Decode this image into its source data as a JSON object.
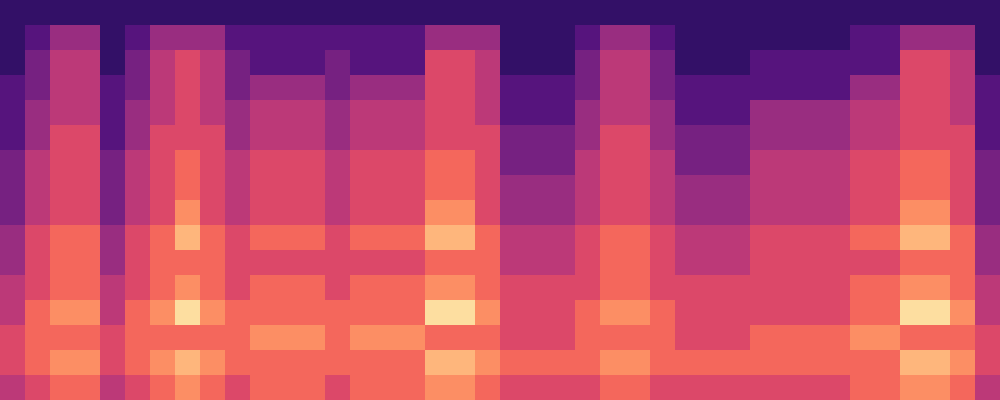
{
  "chart_data": {
    "type": "heatmap",
    "tick_labels": false,
    "cells": [
      [
        0,
        0,
        0,
        0,
        0,
        0,
        0,
        0,
        0,
        0,
        0,
        0,
        0,
        0,
        0,
        0,
        0,
        0,
        0,
        0,
        0,
        0,
        0,
        0,
        0,
        0,
        0,
        0,
        0,
        0,
        0,
        0,
        0,
        0,
        0,
        0,
        0,
        0,
        0,
        0
      ],
      [
        0,
        1,
        3,
        3,
        0,
        1,
        3,
        3,
        3,
        1,
        1,
        1,
        1,
        1,
        1,
        1,
        1,
        3,
        3,
        3,
        0,
        0,
        0,
        1,
        3,
        3,
        1,
        0,
        0,
        0,
        0,
        0,
        0,
        0,
        1,
        1,
        3,
        3,
        3,
        0
      ],
      [
        0,
        2,
        4,
        4,
        0,
        2,
        4,
        5,
        4,
        2,
        1,
        1,
        1,
        2,
        1,
        1,
        1,
        5,
        5,
        4,
        0,
        0,
        0,
        2,
        4,
        4,
        2,
        0,
        0,
        0,
        1,
        1,
        1,
        1,
        1,
        1,
        5,
        5,
        4,
        0
      ],
      [
        1,
        2,
        4,
        4,
        1,
        2,
        4,
        5,
        4,
        2,
        3,
        3,
        3,
        2,
        3,
        3,
        3,
        5,
        5,
        4,
        1,
        1,
        1,
        2,
        4,
        4,
        2,
        1,
        1,
        1,
        1,
        1,
        1,
        1,
        3,
        3,
        5,
        5,
        4,
        1
      ],
      [
        1,
        3,
        4,
        4,
        1,
        3,
        4,
        5,
        4,
        3,
        4,
        4,
        4,
        3,
        4,
        4,
        4,
        5,
        5,
        4,
        1,
        1,
        1,
        3,
        4,
        4,
        3,
        1,
        1,
        1,
        3,
        3,
        3,
        3,
        4,
        4,
        5,
        5,
        4,
        1
      ],
      [
        1,
        3,
        5,
        5,
        1,
        3,
        5,
        5,
        5,
        3,
        4,
        4,
        4,
        3,
        4,
        4,
        4,
        5,
        5,
        5,
        2,
        2,
        2,
        3,
        5,
        5,
        3,
        2,
        2,
        2,
        3,
        3,
        3,
        3,
        4,
        4,
        5,
        5,
        5,
        1
      ],
      [
        2,
        4,
        5,
        5,
        2,
        4,
        5,
        6,
        5,
        4,
        5,
        5,
        5,
        4,
        5,
        5,
        5,
        6,
        6,
        5,
        2,
        2,
        2,
        4,
        5,
        5,
        4,
        2,
        2,
        2,
        4,
        4,
        4,
        4,
        5,
        5,
        6,
        6,
        5,
        2
      ],
      [
        2,
        4,
        5,
        5,
        2,
        4,
        5,
        6,
        5,
        4,
        5,
        5,
        5,
        4,
        5,
        5,
        5,
        6,
        6,
        5,
        3,
        3,
        3,
        4,
        5,
        5,
        4,
        3,
        3,
        3,
        4,
        4,
        4,
        4,
        5,
        5,
        6,
        6,
        5,
        2
      ],
      [
        2,
        4,
        5,
        5,
        2,
        4,
        5,
        7,
        5,
        4,
        5,
        5,
        5,
        4,
        5,
        5,
        5,
        7,
        7,
        5,
        3,
        3,
        3,
        4,
        5,
        5,
        4,
        3,
        3,
        3,
        4,
        4,
        4,
        4,
        5,
        5,
        7,
        7,
        5,
        2
      ],
      [
        3,
        5,
        6,
        6,
        3,
        5,
        6,
        8,
        6,
        5,
        6,
        6,
        6,
        5,
        6,
        6,
        6,
        8,
        8,
        6,
        4,
        4,
        4,
        5,
        6,
        6,
        5,
        4,
        4,
        4,
        5,
        5,
        5,
        5,
        6,
        6,
        8,
        8,
        6,
        3
      ],
      [
        3,
        5,
        6,
        6,
        3,
        5,
        6,
        6,
        6,
        5,
        5,
        5,
        5,
        5,
        5,
        5,
        5,
        6,
        6,
        6,
        4,
        4,
        4,
        5,
        6,
        6,
        5,
        4,
        4,
        4,
        5,
        5,
        5,
        5,
        5,
        5,
        6,
        6,
        6,
        3
      ],
      [
        4,
        5,
        6,
        6,
        4,
        5,
        6,
        7,
        6,
        5,
        6,
        6,
        6,
        5,
        6,
        6,
        6,
        7,
        7,
        6,
        5,
        5,
        5,
        5,
        6,
        6,
        5,
        5,
        5,
        5,
        5,
        5,
        5,
        5,
        6,
        6,
        7,
        7,
        6,
        4
      ],
      [
        4,
        6,
        7,
        7,
        4,
        6,
        7,
        9,
        7,
        6,
        6,
        6,
        6,
        6,
        6,
        6,
        6,
        9,
        9,
        7,
        5,
        5,
        5,
        6,
        7,
        7,
        6,
        5,
        5,
        5,
        5,
        5,
        5,
        5,
        6,
        6,
        9,
        9,
        7,
        4
      ],
      [
        5,
        6,
        6,
        6,
        5,
        6,
        6,
        6,
        6,
        6,
        7,
        7,
        7,
        6,
        7,
        7,
        7,
        6,
        6,
        6,
        5,
        5,
        5,
        6,
        6,
        6,
        6,
        5,
        5,
        5,
        6,
        6,
        6,
        6,
        7,
        7,
        6,
        6,
        6,
        5
      ],
      [
        5,
        6,
        7,
        7,
        5,
        6,
        7,
        8,
        7,
        6,
        6,
        6,
        6,
        6,
        6,
        6,
        6,
        8,
        8,
        7,
        6,
        6,
        6,
        6,
        7,
        7,
        6,
        6,
        6,
        6,
        6,
        6,
        6,
        6,
        6,
        6,
        8,
        8,
        7,
        5
      ],
      [
        4,
        5,
        6,
        6,
        4,
        5,
        6,
        7,
        6,
        5,
        6,
        6,
        6,
        5,
        6,
        6,
        6,
        7,
        7,
        6,
        5,
        5,
        5,
        5,
        6,
        6,
        5,
        5,
        5,
        5,
        5,
        5,
        5,
        5,
        6,
        6,
        7,
        7,
        6,
        4
      ]
    ]
  }
}
